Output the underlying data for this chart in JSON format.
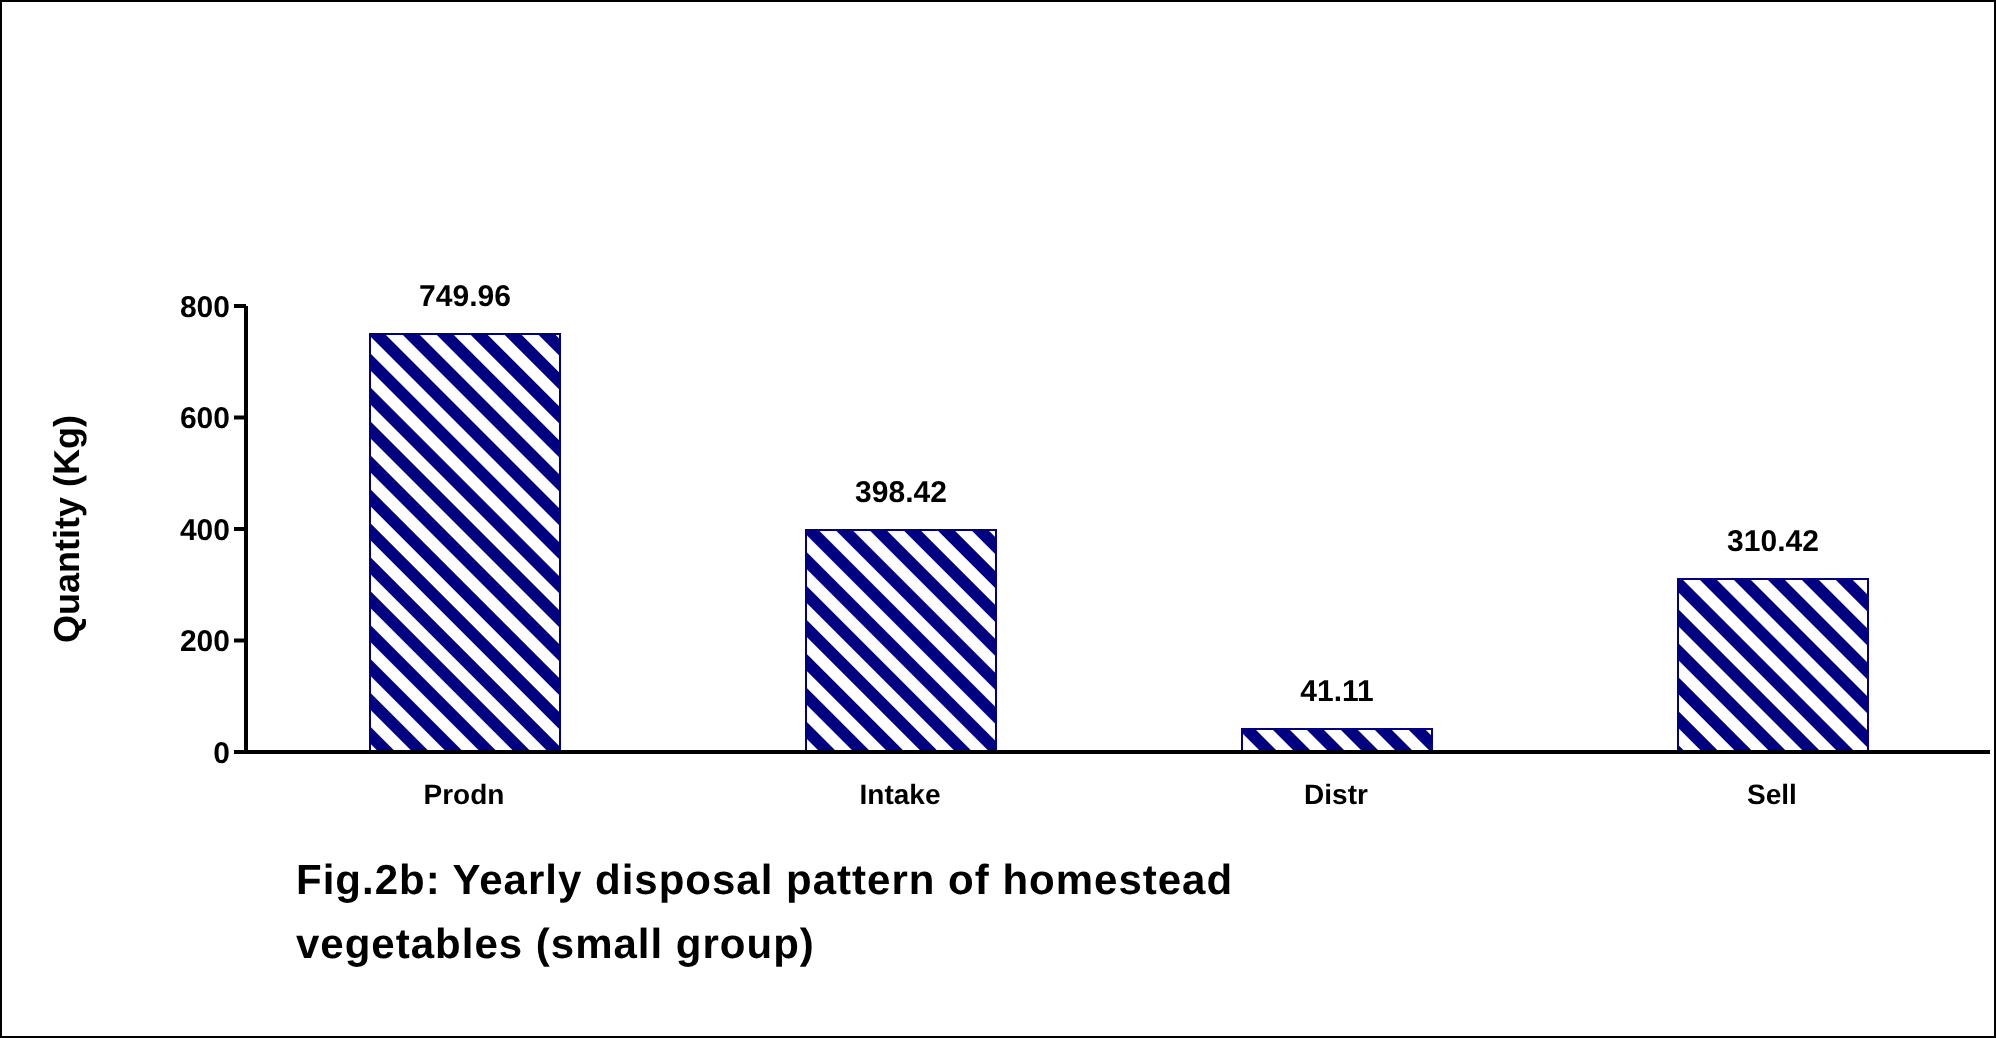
{
  "chart_data": {
    "type": "bar",
    "title": "Fig.2b: Yearly disposal pattern of homestead vegetables (small group)",
    "ylabel": "Quantity (Kg)",
    "categories": [
      "Prodn",
      "Intake",
      "Distr",
      "Sell"
    ],
    "values": [
      749.96,
      398.42,
      41.11,
      310.42
    ],
    "color": "#000080",
    "ylim": [
      0,
      800
    ],
    "yticks": [
      0,
      200,
      400,
      600,
      800
    ],
    "data_labels": true
  }
}
